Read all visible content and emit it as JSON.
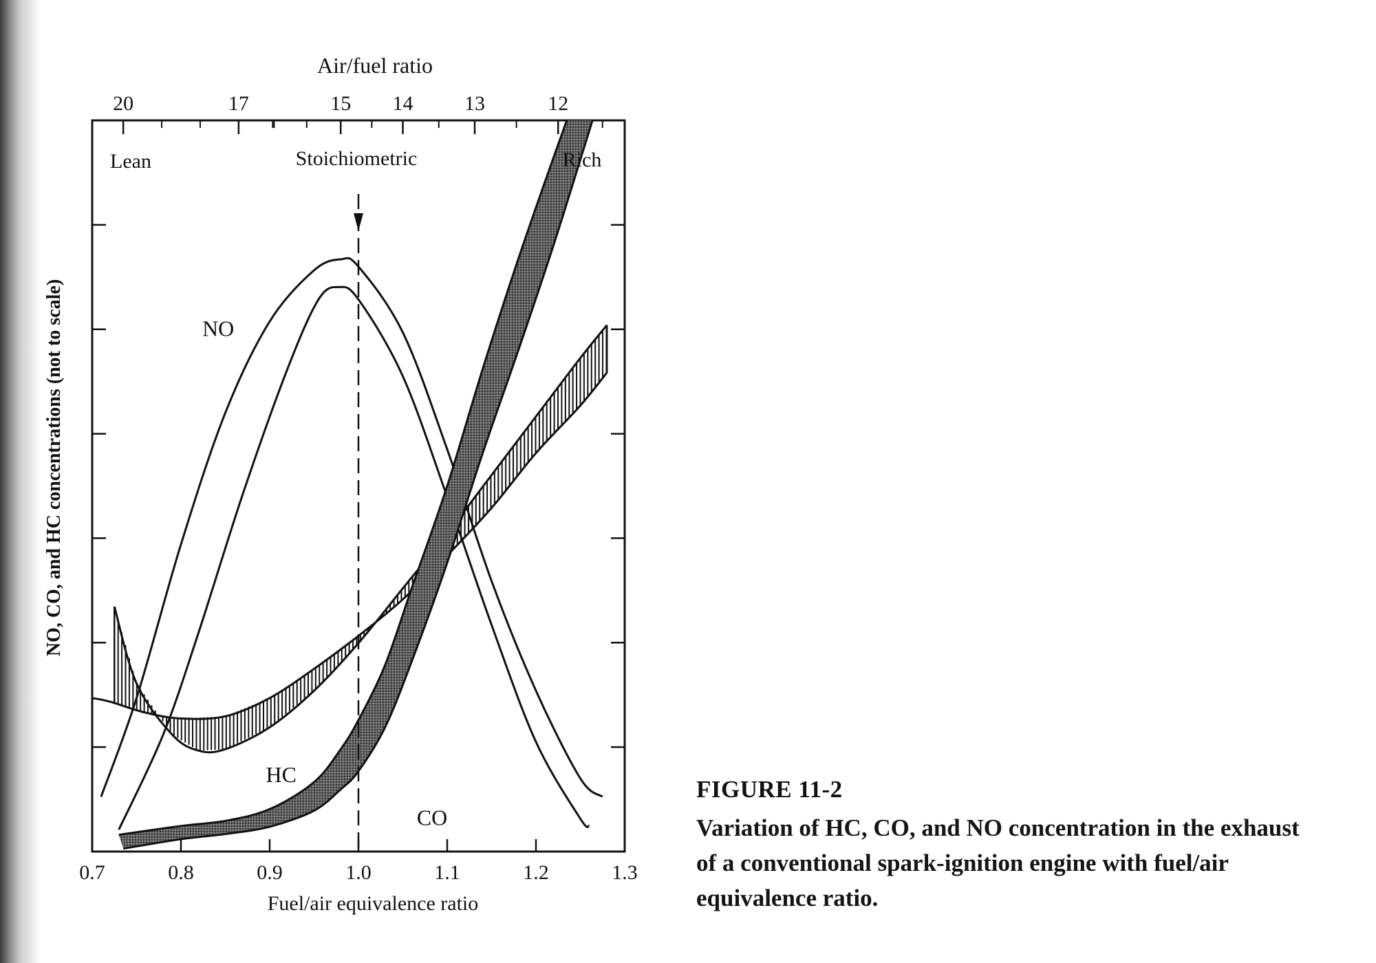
{
  "figure": {
    "label": "FIGURE 11-2",
    "caption": "Variation of HC, CO, and NO concentration in the exhaust of a conventional spark-ignition engine with fuel/air equivalence ratio."
  },
  "chart_data": {
    "type": "line",
    "title": "",
    "xlabel": "Fuel/air equivalence ratio",
    "ylabel": "NO, CO, and HC concentrations (not to scale)",
    "xlim": [
      0.7,
      1.3
    ],
    "ylim": [
      0,
      10
    ],
    "x_ticks": [
      "0.7",
      "0.8",
      "0.9",
      "1.0",
      "1.1",
      "1.2",
      "1.3"
    ],
    "y_ticks_labeled": false,
    "top_axis": {
      "label": "Air/fuel ratio",
      "ticks": [
        {
          "label": "20",
          "phi": 0.735
        },
        {
          "label": "17",
          "phi": 0.865
        },
        {
          "label": "15",
          "phi": 0.98
        },
        {
          "label": "14",
          "phi": 1.05
        },
        {
          "label": "13",
          "phi": 1.131
        },
        {
          "label": "12",
          "phi": 1.225
        }
      ]
    },
    "region_labels": {
      "lean": "Lean",
      "stoichiometric": "Stoichiometric",
      "rich": "Rich"
    },
    "stoichiometric_phi": 1.0,
    "series": [
      {
        "name": "NO",
        "style": "band-outline",
        "upper": [
          [
            0.71,
            0.75
          ],
          [
            0.75,
            2.1
          ],
          [
            0.8,
            4.2
          ],
          [
            0.85,
            6.0
          ],
          [
            0.9,
            7.25
          ],
          [
            0.95,
            7.95
          ],
          [
            0.98,
            8.1
          ],
          [
            1.0,
            8.0
          ],
          [
            1.05,
            7.1
          ],
          [
            1.1,
            5.5
          ],
          [
            1.15,
            3.7
          ],
          [
            1.2,
            2.2
          ],
          [
            1.25,
            1.0
          ],
          [
            1.275,
            0.75
          ]
        ],
        "lower": [
          [
            0.73,
            0.3
          ],
          [
            0.78,
            1.6
          ],
          [
            0.82,
            3.0
          ],
          [
            0.87,
            4.9
          ],
          [
            0.92,
            6.6
          ],
          [
            0.955,
            7.55
          ],
          [
            0.978,
            7.72
          ],
          [
            1.0,
            7.55
          ],
          [
            1.05,
            6.5
          ],
          [
            1.1,
            4.85
          ],
          [
            1.15,
            3.1
          ],
          [
            1.2,
            1.5
          ],
          [
            1.25,
            0.45
          ],
          [
            1.26,
            0.35
          ]
        ]
      },
      {
        "name": "HC",
        "style": "band-hatched",
        "upper": [
          [
            0.725,
            3.35
          ],
          [
            0.75,
            2.3
          ],
          [
            0.79,
            1.6
          ],
          [
            0.82,
            1.38
          ],
          [
            0.85,
            1.4
          ],
          [
            0.9,
            1.7
          ],
          [
            0.95,
            2.2
          ],
          [
            1.0,
            2.85
          ],
          [
            1.05,
            3.6
          ],
          [
            1.1,
            4.35
          ],
          [
            1.15,
            5.15
          ],
          [
            1.2,
            5.95
          ],
          [
            1.25,
            6.75
          ],
          [
            1.28,
            7.2
          ]
        ],
        "lower": [
          [
            0.7,
            2.1
          ],
          [
            0.72,
            2.05
          ],
          [
            0.76,
            1.9
          ],
          [
            0.8,
            1.82
          ],
          [
            0.85,
            1.85
          ],
          [
            0.9,
            2.1
          ],
          [
            0.95,
            2.5
          ],
          [
            1.0,
            2.95
          ],
          [
            1.05,
            3.45
          ],
          [
            1.1,
            4.05
          ],
          [
            1.15,
            4.7
          ],
          [
            1.2,
            5.45
          ],
          [
            1.25,
            6.1
          ],
          [
            1.28,
            6.55
          ]
        ]
      },
      {
        "name": "CO",
        "style": "band-filled",
        "upper": [
          [
            0.73,
            0.23
          ],
          [
            0.8,
            0.35
          ],
          [
            0.85,
            0.42
          ],
          [
            0.9,
            0.58
          ],
          [
            0.95,
            0.95
          ],
          [
            0.98,
            1.4
          ],
          [
            1.0,
            1.8
          ],
          [
            1.03,
            2.55
          ],
          [
            1.06,
            3.6
          ],
          [
            1.1,
            5.0
          ],
          [
            1.14,
            6.6
          ],
          [
            1.18,
            8.1
          ],
          [
            1.22,
            9.5
          ],
          [
            1.245,
            10.35
          ]
        ],
        "lower": [
          [
            0.735,
            0.04
          ],
          [
            0.8,
            0.17
          ],
          [
            0.85,
            0.24
          ],
          [
            0.9,
            0.34
          ],
          [
            0.95,
            0.56
          ],
          [
            0.98,
            0.85
          ],
          [
            1.0,
            1.1
          ],
          [
            1.03,
            1.7
          ],
          [
            1.06,
            2.6
          ],
          [
            1.1,
            3.95
          ],
          [
            1.14,
            5.45
          ],
          [
            1.18,
            6.85
          ],
          [
            1.22,
            8.3
          ],
          [
            1.265,
            10.05
          ]
        ]
      }
    ],
    "annotations": [
      {
        "text": "NO",
        "x": 0.842,
        "y": 7.05
      },
      {
        "text": "HC",
        "x": 0.913,
        "y": 0.95
      },
      {
        "text": "CO",
        "x": 1.083,
        "y": 0.36
      }
    ],
    "grid": false,
    "legend": "none"
  }
}
